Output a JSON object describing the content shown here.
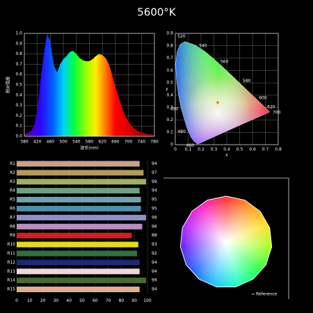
{
  "title": "5600°K",
  "chart_data": [
    {
      "type": "spectrum",
      "x_label": "波长(nm)",
      "y_label": "相对强度",
      "x": [
        380,
        390,
        400,
        410,
        420,
        430,
        440,
        450,
        460,
        470,
        480,
        490,
        500,
        510,
        520,
        530,
        540,
        550,
        560,
        570,
        580,
        590,
        600,
        610,
        620,
        630,
        640,
        650,
        660,
        670,
        680,
        690,
        700,
        710,
        720,
        730,
        740,
        750,
        760,
        770,
        780
      ],
      "values": [
        0.02,
        0.03,
        0.05,
        0.1,
        0.25,
        0.55,
        0.8,
        1.0,
        0.92,
        0.7,
        0.62,
        0.7,
        0.75,
        0.78,
        0.82,
        0.83,
        0.8,
        0.76,
        0.74,
        0.73,
        0.73,
        0.75,
        0.78,
        0.8,
        0.79,
        0.76,
        0.7,
        0.6,
        0.48,
        0.38,
        0.28,
        0.2,
        0.14,
        0.1,
        0.07,
        0.05,
        0.04,
        0.03,
        0.02,
        0.02,
        0.01
      ],
      "xlim": [
        380,
        780
      ],
      "xticks": [
        380,
        420,
        460,
        500,
        540,
        580,
        620,
        660,
        700,
        740,
        780
      ],
      "ylim": [
        0,
        1
      ],
      "yticks": [
        {
          "value": 0,
          "label": "0.0"
        },
        0.1,
        0.2,
        0.3,
        0.4,
        0.5,
        0.6,
        0.7,
        0.8,
        0.9,
        {
          "value": 1,
          "label": "1.0"
        }
      ],
      "grid": true
    },
    {
      "type": "cie",
      "x_label": "x",
      "y_label": "y",
      "locus_x": [
        0.1741,
        0.1644,
        0.144,
        0.1241,
        0.0913,
        0.0454,
        0.0235,
        0.0082,
        0.0039,
        0.0139,
        0.0389,
        0.0743,
        0.1547,
        0.2296,
        0.3016,
        0.3731,
        0.4441,
        0.5125,
        0.5752,
        0.627,
        0.6915,
        0.719,
        0.7347
      ],
      "locus_y": [
        0.005,
        0.0109,
        0.0297,
        0.0578,
        0.1327,
        0.295,
        0.4127,
        0.5384,
        0.6548,
        0.7502,
        0.812,
        0.8338,
        0.8059,
        0.7543,
        0.6923,
        0.6245,
        0.5547,
        0.4866,
        0.4242,
        0.3725,
        0.3083,
        0.2809,
        0.2653
      ],
      "wavelength_labels": [
        {
          "wavelength": 460,
          "x": 0.144,
          "y": 0.0297
        },
        {
          "wavelength": 480,
          "x": 0.0913,
          "y": 0.1327
        },
        {
          "wavelength": 490,
          "x": 0.0454,
          "y": 0.295
        },
        {
          "wavelength": 520,
          "x": 0.0743,
          "y": 0.8338
        },
        {
          "wavelength": 540,
          "x": 0.2296,
          "y": 0.7543
        },
        {
          "wavelength": 560,
          "x": 0.3731,
          "y": 0.6245
        },
        {
          "wavelength": 580,
          "x": 0.5125,
          "y": 0.4866
        },
        {
          "wavelength": 600,
          "x": 0.627,
          "y": 0.3725
        },
        {
          "wavelength": 620,
          "x": 0.6915,
          "y": 0.3083
        },
        {
          "wavelength": 700,
          "x": 0.7347,
          "y": 0.2653
        }
      ],
      "point": {
        "x": 0.33,
        "y": 0.34
      },
      "point_color": "#ff8c00",
      "xlim": [
        0,
        0.8
      ],
      "xticks": [
        0,
        0.1,
        0.2,
        0.3,
        0.4,
        0.5,
        0.6,
        0.7,
        0.8
      ],
      "ylim": [
        0,
        0.9
      ],
      "yticks": [
        0,
        0.1,
        0.2,
        0.3,
        0.4,
        0.5,
        0.6,
        0.7,
        0.8,
        0.9
      ],
      "grid": true
    },
    {
      "type": "hbar",
      "categories": [
        "R1",
        "R2",
        "R3",
        "R4",
        "R5",
        "R6",
        "R7",
        "R8",
        "R9",
        "R10",
        "R11",
        "R12",
        "R13",
        "R14",
        "R15"
      ],
      "values": [
        94,
        97,
        99,
        94,
        95,
        95,
        99,
        96,
        88,
        93,
        92,
        94,
        94,
        99,
        94
      ],
      "colors": [
        "#c8a090",
        "#b09a60",
        "#a0b060",
        "#70a080",
        "#70a0b0",
        "#4a90a8",
        "#8a90c8",
        "#b890c0",
        "#d02020",
        "#e8d820",
        "#307040",
        "#202870",
        "#ecd8d8",
        "#4a6a30",
        "#e0b090"
      ],
      "xlim": [
        0,
        100
      ],
      "xticks": [
        0,
        10,
        20,
        30,
        40,
        50,
        60,
        70,
        80,
        90,
        100
      ],
      "grid": true
    },
    {
      "type": "color-vector",
      "legend": "Reference"
    }
  ]
}
